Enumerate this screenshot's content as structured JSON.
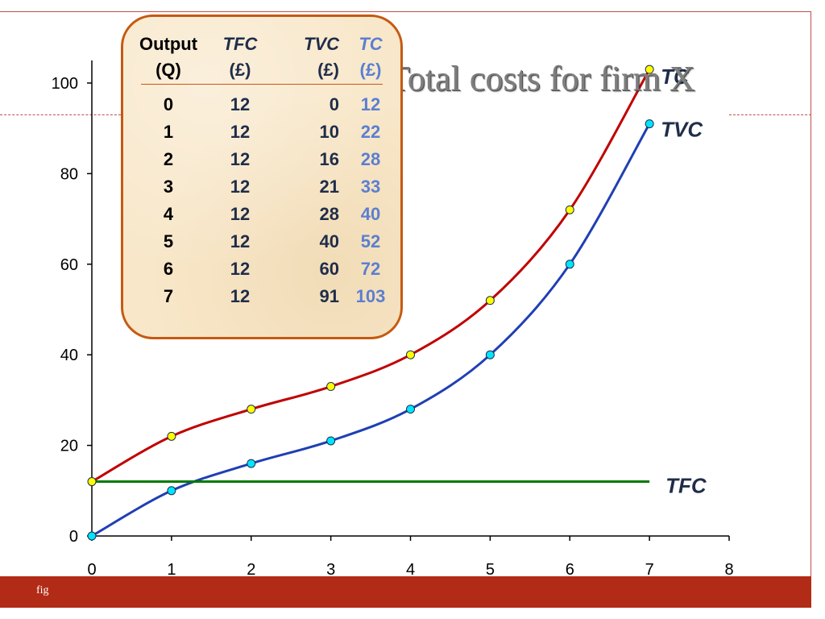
{
  "slide": {
    "title": "Total costs for firm X",
    "footer": "fig"
  },
  "table": {
    "headers": [
      {
        "label": "Output",
        "unit": "(Q)"
      },
      {
        "label": "TFC",
        "unit": "(£)"
      },
      {
        "label": "TVC",
        "unit": "(£)"
      },
      {
        "label": "TC",
        "unit": "(£)"
      }
    ],
    "rows": [
      [
        0,
        12,
        0,
        12
      ],
      [
        1,
        12,
        10,
        22
      ],
      [
        2,
        12,
        16,
        28
      ],
      [
        3,
        12,
        21,
        33
      ],
      [
        4,
        12,
        28,
        40
      ],
      [
        5,
        12,
        40,
        52
      ],
      [
        6,
        12,
        60,
        72
      ],
      [
        7,
        12,
        91,
        103
      ]
    ]
  },
  "chart_data": {
    "type": "line",
    "title": "",
    "xlabel": "",
    "ylabel": "",
    "xlim": [
      0,
      8
    ],
    "ylim": [
      0,
      100
    ],
    "xticks": [
      0,
      1,
      2,
      3,
      4,
      5,
      6,
      7,
      8
    ],
    "yticks": [
      0,
      20,
      40,
      60,
      80,
      100
    ],
    "grid": false,
    "series": [
      {
        "name": "TC",
        "color": "#c00000",
        "marker_color": "#ffff00",
        "x": [
          0,
          1,
          2,
          3,
          4,
          5,
          6,
          7
        ],
        "y": [
          12,
          22,
          28,
          33,
          40,
          52,
          72,
          103
        ]
      },
      {
        "name": "TVC",
        "color": "#1f3fb4",
        "marker_color": "#00e5ff",
        "x": [
          0,
          1,
          2,
          3,
          4,
          5,
          6,
          7
        ],
        "y": [
          0,
          10,
          16,
          21,
          28,
          40,
          60,
          91
        ]
      },
      {
        "name": "TFC",
        "color": "#007a00",
        "x": [
          0,
          7
        ],
        "y": [
          12,
          12
        ]
      }
    ]
  },
  "colors": {
    "accent": "#c0504d",
    "footer": "#b22b16",
    "table_border": "#c55a11",
    "table_bg": "#f8e7c9"
  }
}
